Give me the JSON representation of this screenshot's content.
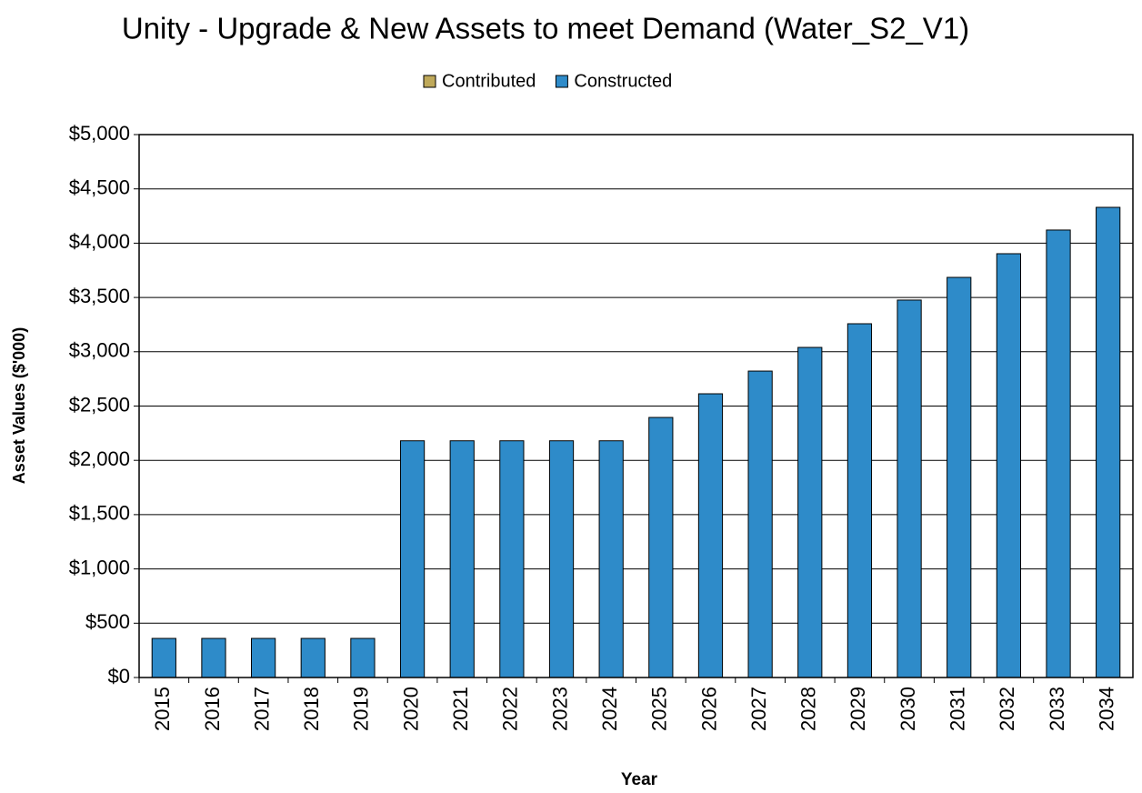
{
  "chart_data": {
    "type": "stacked_bar",
    "title": "Unity - Upgrade & New Assets to meet Demand (Water_S2_V1)",
    "x_label": "Year",
    "y_label": "Asset Values ($'000)",
    "categories": [
      "2015",
      "2016",
      "2017",
      "2018",
      "2019",
      "2020",
      "2021",
      "2022",
      "2023",
      "2024",
      "2025",
      "2026",
      "2027",
      "2028",
      "2029",
      "2030",
      "2031",
      "2032",
      "2033",
      "2034"
    ],
    "series": [
      {
        "name": "Contributed",
        "color": "#bfa95a",
        "values": [
          0,
          0,
          0,
          0,
          0,
          0,
          0,
          0,
          0,
          0,
          0,
          0,
          0,
          0,
          0,
          0,
          0,
          0,
          0,
          0
        ]
      },
      {
        "name": "Constructed",
        "color": "#2e8bc9",
        "values": [
          360,
          360,
          360,
          360,
          360,
          2180,
          2180,
          2180,
          2180,
          2180,
          2395,
          2613,
          2822,
          3040,
          3258,
          3476,
          3685,
          3903,
          4121,
          4330
        ]
      }
    ],
    "ylim": [
      0,
      5000
    ],
    "yticks": [
      {
        "value": 0,
        "label": "$0"
      },
      {
        "value": 500,
        "label": "$500"
      },
      {
        "value": 1000,
        "label": "$1,000"
      },
      {
        "value": 1500,
        "label": "$1,500"
      },
      {
        "value": 2000,
        "label": "$2,000"
      },
      {
        "value": 2500,
        "label": "$2,500"
      },
      {
        "value": 3000,
        "label": "$3,000"
      },
      {
        "value": 3500,
        "label": "$3,500"
      },
      {
        "value": 4000,
        "label": "$4,000"
      },
      {
        "value": 4500,
        "label": "$4,500"
      },
      {
        "value": 5000,
        "label": "$5,000"
      }
    ],
    "grid": true,
    "legend": "top"
  }
}
